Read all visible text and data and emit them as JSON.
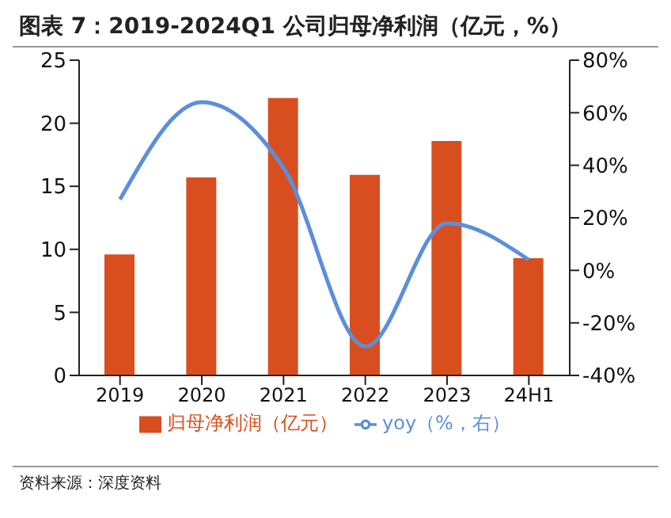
{
  "chart_data": {
    "type": "bar",
    "title": "图表 7：2019-2024Q1 公司归母净利润（亿元，%）",
    "categories": [
      "2019",
      "2020",
      "2021",
      "2022",
      "2023",
      "24H1"
    ],
    "series": [
      {
        "name": "归母净利润（亿元）",
        "color": "#d94e1f",
        "values": [
          9.6,
          15.7,
          22.0,
          15.9,
          18.6,
          9.3
        ]
      },
      {
        "name": "yoy（%，右）",
        "type": "line",
        "axis": "y2",
        "color": "#5b8fd9",
        "values": [
          27,
          64,
          39,
          -29,
          18,
          4
        ],
        "marker": "none"
      }
    ],
    "ylim": [
      0,
      25
    ],
    "yticks": [
      0,
      5,
      10,
      15,
      20,
      25
    ],
    "y2lim": [
      -40,
      80
    ],
    "y2ticks": [
      {
        "value": -40,
        "label": "-40%"
      },
      {
        "value": -20,
        "label": "-20%"
      },
      {
        "value": 0,
        "label": "0%"
      },
      {
        "value": 20,
        "label": "20%"
      },
      {
        "value": 40,
        "label": "40%"
      },
      {
        "value": 60,
        "label": "60%"
      },
      {
        "value": 80,
        "label": "80%"
      }
    ],
    "grid": false,
    "legend": "bottom",
    "annotations": [
      "资料来源：深度资料"
    ]
  }
}
